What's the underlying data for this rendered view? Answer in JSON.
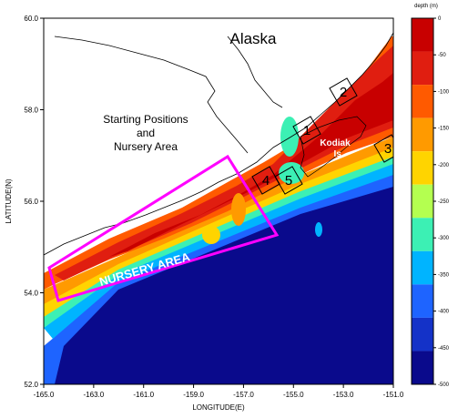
{
  "map": {
    "title_region": "Alaska",
    "annotation": [
      "Starting Positions",
      "and",
      "Nursery Area"
    ],
    "island_label": [
      "Kodiak",
      "Is."
    ],
    "nursery_label": "NURSERY AREA",
    "x_axis_label": "LONGITUDE(E)",
    "y_axis_label": "LATITUDE(N)",
    "x_ticks": [
      "-165.0",
      "-163.0",
      "-161.0",
      "-159.0",
      "-157.0",
      "-155.0",
      "-153.0",
      "-151.0"
    ],
    "y_ticks": [
      "60.0",
      "58.0",
      "56.0",
      "54.0",
      "52.0"
    ],
    "boxes": [
      "1",
      "2",
      "3",
      "4",
      "5"
    ]
  },
  "colorbar": {
    "title": "depth  (m)",
    "ticks": [
      "0",
      "-50",
      "-100",
      "-150",
      "-200",
      "-250",
      "-300",
      "-350",
      "-400",
      "-450",
      "-500"
    ],
    "colors": [
      "#c80000",
      "#e01e10",
      "#ff5a00",
      "#ff9a00",
      "#ffd400",
      "#b4ff50",
      "#3cf0b4",
      "#00b4ff",
      "#1e64ff",
      "#1432c8",
      "#0a0a8c"
    ]
  },
  "colors": {
    "nursery_outline": "#ff00ff",
    "deep_ocean": "#0a0a8c",
    "land": "#ffffff"
  }
}
